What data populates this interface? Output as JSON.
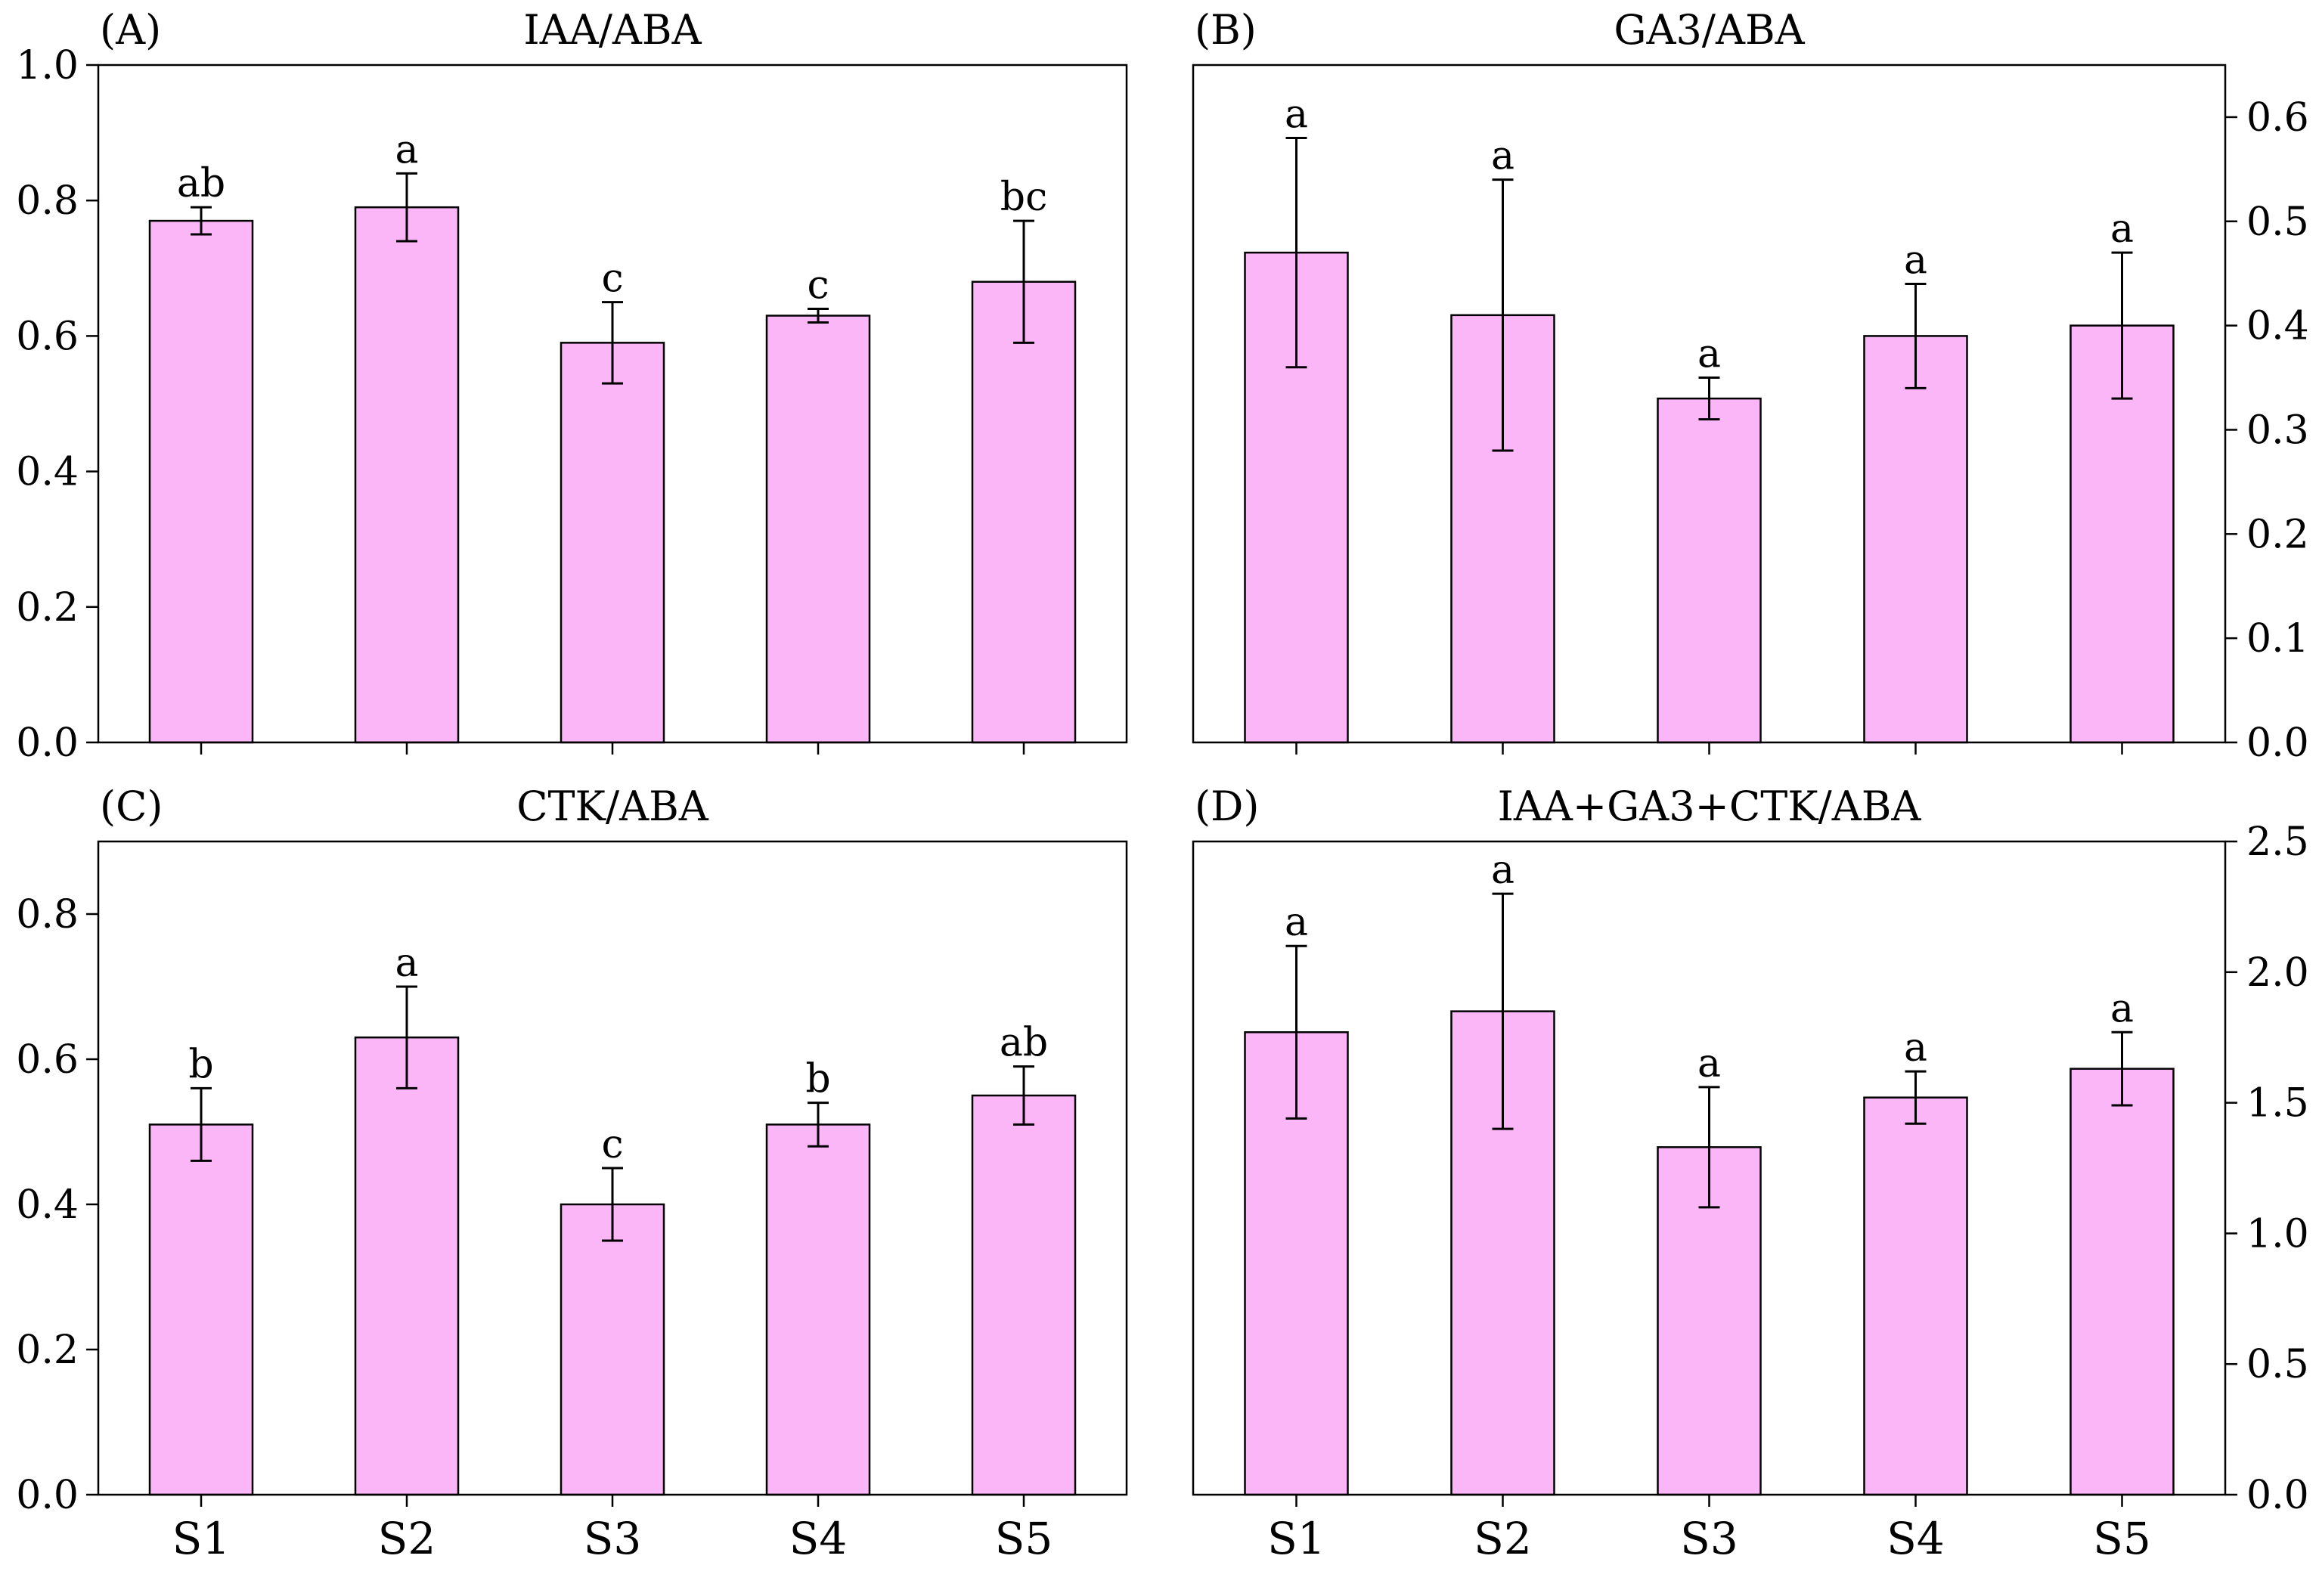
{
  "colors": {
    "bar_fill": "#fbb6f7",
    "bar_stroke": "#000000",
    "axis": "#000000"
  },
  "chart_data": [
    {
      "type": "bar",
      "panel": "(A)",
      "title": "IAA/ABA",
      "y_axis_side": "left",
      "show_x_labels": false,
      "categories": [
        "S1",
        "S2",
        "S3",
        "S4",
        "S5"
      ],
      "values": [
        0.77,
        0.79,
        0.59,
        0.63,
        0.68
      ],
      "errors": [
        0.02,
        0.05,
        0.06,
        0.01,
        0.09
      ],
      "significance": [
        "ab",
        "a",
        "c",
        "c",
        "bc"
      ],
      "ylim": [
        0,
        1.0
      ],
      "yticks": [
        0.0,
        0.2,
        0.4,
        0.6,
        0.8,
        1.0
      ],
      "ytick_labels": [
        "0.0",
        "0.2",
        "0.4",
        "0.6",
        "0.8",
        "1.0"
      ]
    },
    {
      "type": "bar",
      "panel": "(B)",
      "title": "GA3/ABA",
      "y_axis_side": "right",
      "show_x_labels": false,
      "categories": [
        "S1",
        "S2",
        "S3",
        "S4",
        "S5"
      ],
      "values": [
        0.47,
        0.41,
        0.33,
        0.39,
        0.4
      ],
      "errors": [
        0.11,
        0.13,
        0.02,
        0.05,
        0.07
      ],
      "significance": [
        "a",
        "a",
        "a",
        "a",
        "a"
      ],
      "ylim": [
        0,
        0.65
      ],
      "yticks": [
        0.0,
        0.1,
        0.2,
        0.3,
        0.4,
        0.5,
        0.6
      ],
      "ytick_labels": [
        "0.0",
        "0.1",
        "0.2",
        "0.3",
        "0.4",
        "0.5",
        "0.6"
      ]
    },
    {
      "type": "bar",
      "panel": "(C)",
      "title": "CTK/ABA",
      "y_axis_side": "left",
      "show_x_labels": true,
      "categories": [
        "S1",
        "S2",
        "S3",
        "S4",
        "S5"
      ],
      "values": [
        0.51,
        0.63,
        0.4,
        0.51,
        0.55
      ],
      "errors": [
        0.05,
        0.07,
        0.05,
        0.03,
        0.04
      ],
      "significance": [
        "b",
        "a",
        "c",
        "b",
        "ab"
      ],
      "ylim": [
        0,
        0.9
      ],
      "yticks": [
        0.0,
        0.2,
        0.4,
        0.6,
        0.8
      ],
      "ytick_labels": [
        "0.0",
        "0.2",
        "0.4",
        "0.6",
        "0.8"
      ]
    },
    {
      "type": "bar",
      "panel": "(D)",
      "title": "IAA+GA3+CTK/ABA",
      "y_axis_side": "right",
      "show_x_labels": true,
      "categories": [
        "S1",
        "S2",
        "S3",
        "S4",
        "S5"
      ],
      "values": [
        1.77,
        1.85,
        1.33,
        1.52,
        1.63
      ],
      "errors": [
        0.33,
        0.45,
        0.23,
        0.1,
        0.14
      ],
      "significance": [
        "a",
        "a",
        "a",
        "a",
        "a"
      ],
      "ylim": [
        0,
        2.5
      ],
      "yticks": [
        0.0,
        0.5,
        1.0,
        1.5,
        2.0,
        2.5
      ],
      "ytick_labels": [
        "0.0",
        "0.5",
        "1.0",
        "1.5",
        "2.0",
        "2.5"
      ]
    }
  ]
}
